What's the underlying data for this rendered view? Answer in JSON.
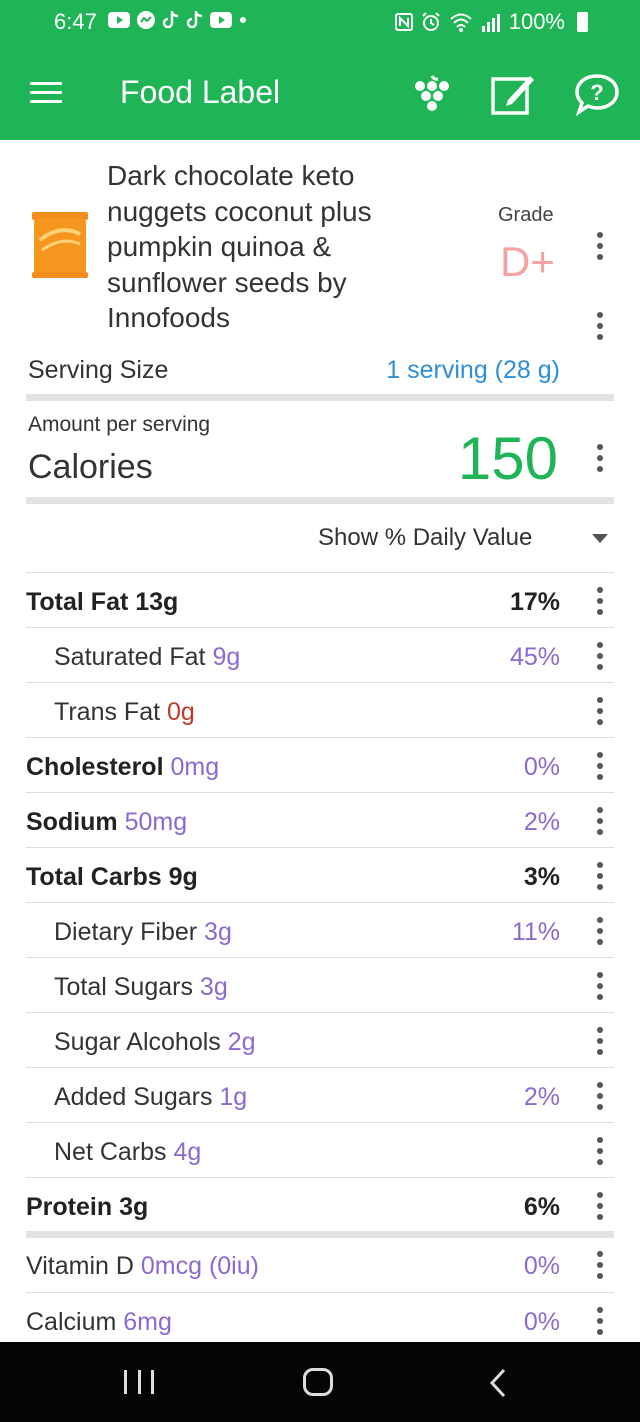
{
  "status_bar": {
    "time": "6:47",
    "battery": "100%",
    "left_icons": [
      "youtube-icon",
      "messenger-icon",
      "tiktok-icon",
      "tiktok-icon",
      "youtube-icon",
      "dot-icon"
    ],
    "right_icons": [
      "nfc-icon",
      "alarm-icon",
      "wifi-icon",
      "signal-icon",
      "battery-icon"
    ]
  },
  "app_bar": {
    "title": "Food Label",
    "actions": [
      "grapes-icon",
      "edit-icon",
      "help-chat-icon"
    ]
  },
  "food": {
    "title": "Dark chocolate keto nuggets coconut plus pumpkin quinoa & sunflower seeds by Innofoods",
    "grade_label": "Grade",
    "grade": "D+"
  },
  "serving": {
    "label": "Serving Size",
    "value": "1 serving (28 g)"
  },
  "calories": {
    "amount_label": "Amount per serving",
    "label": "Calories",
    "value": "150"
  },
  "daily_value_selector": "Show % Daily Value",
  "nutrients": [
    {
      "name": "Total Fat 13g",
      "amount": "",
      "pct": "17%",
      "bold": true,
      "indent": false
    },
    {
      "name": "Saturated Fat",
      "amount": "9g",
      "pct": "45%",
      "bold": false,
      "indent": true
    },
    {
      "name": "Trans Fat",
      "amount": "0g",
      "pct": "",
      "bold": false,
      "indent": true
    },
    {
      "name": "Cholesterol",
      "amount": "0mg",
      "pct": "0%",
      "bold": true,
      "indent": false
    },
    {
      "name": "Sodium",
      "amount": "50mg",
      "pct": "2%",
      "bold": true,
      "indent": false
    },
    {
      "name": "Total Carbs 9g",
      "amount": "",
      "pct": "3%",
      "bold": true,
      "indent": false
    },
    {
      "name": "Dietary Fiber",
      "amount": "3g",
      "pct": "11%",
      "bold": false,
      "indent": true
    },
    {
      "name": "Total Sugars",
      "amount": "3g",
      "pct": "",
      "bold": false,
      "indent": true
    },
    {
      "name": "Sugar Alcohols",
      "amount": "2g",
      "pct": "",
      "bold": false,
      "indent": true
    },
    {
      "name": "Added Sugars",
      "amount": "1g",
      "pct": "2%",
      "bold": false,
      "indent": true
    },
    {
      "name": "Net Carbs",
      "amount": "4g",
      "pct": "",
      "bold": false,
      "indent": true
    },
    {
      "name": "Protein 3g",
      "amount": "",
      "pct": "6%",
      "bold": true,
      "indent": false
    },
    {
      "name": "Vitamin D",
      "amount": "0mcg (0iu)",
      "pct": "0%",
      "bold": false,
      "indent": false
    },
    {
      "name": "Calcium",
      "amount": "6mg",
      "pct": "0%",
      "bold": false,
      "indent": false
    }
  ],
  "colors": {
    "brand": "#1fb455",
    "link": "#2d8fd8",
    "amount": "#8a6ad0",
    "grade": "#f4a3a3",
    "trans_fat": "#c0392b"
  }
}
